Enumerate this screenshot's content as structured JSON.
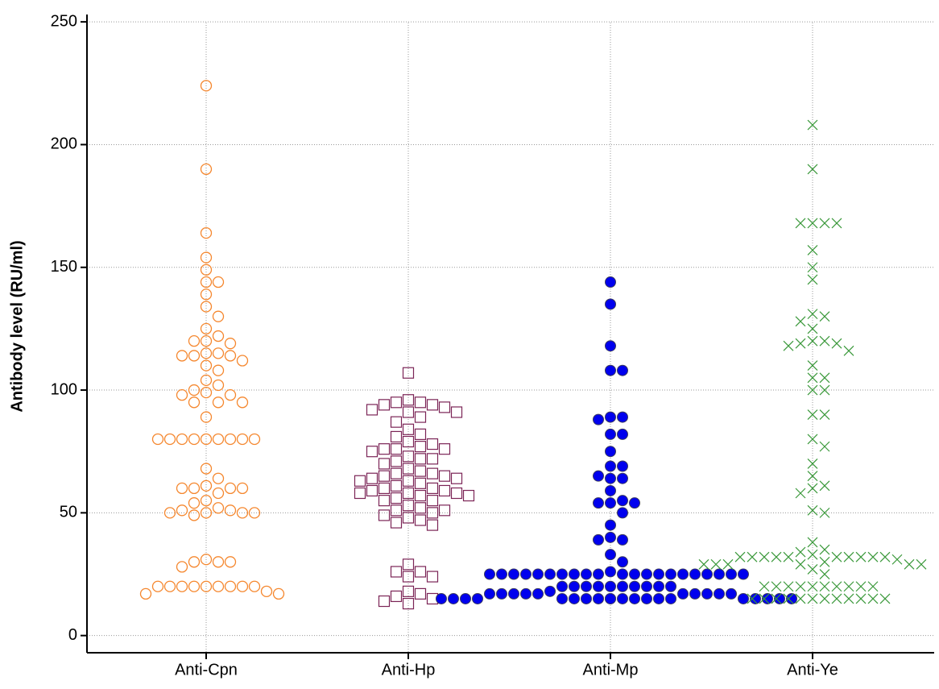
{
  "chart_data": {
    "type": "strip",
    "y_label": "Antibody level (RU/ml)",
    "categories": [
      "Anti-Cpn",
      "Anti-Hp",
      "Anti-Mp",
      "Anti-Ye"
    ],
    "ylim": [
      -7,
      253
    ],
    "yticks": [
      0,
      50,
      100,
      150,
      200,
      250
    ],
    "grid": true,
    "series": [
      {
        "color": "#f5872e",
        "marker": "open-circle",
        "values": [
          224,
          190,
          164,
          154,
          149,
          144,
          144,
          139,
          134,
          130,
          125,
          122,
          120,
          120,
          119,
          115,
          115,
          114,
          114,
          114,
          112,
          110,
          108,
          104,
          102,
          100,
          99,
          98,
          98,
          95,
          95,
          95,
          89,
          80,
          80,
          80,
          80,
          80,
          80,
          80,
          80,
          80,
          68,
          64,
          61,
          60,
          60,
          60,
          60,
          58,
          55,
          54,
          52,
          51,
          51,
          50,
          50,
          50,
          50,
          49,
          31,
          30,
          30,
          30,
          28,
          20,
          20,
          20,
          20,
          20,
          20,
          20,
          20,
          20,
          18,
          17,
          17
        ]
      },
      {
        "color": "#7b2456",
        "marker": "open-square",
        "values": [
          107,
          96,
          95,
          95,
          94,
          94,
          93,
          92,
          91,
          91,
          89,
          87,
          84,
          82,
          81,
          79,
          78,
          77,
          76,
          76,
          76,
          75,
          73,
          72,
          72,
          71,
          70,
          68,
          67,
          66,
          66,
          65,
          65,
          64,
          64,
          63,
          63,
          62,
          61,
          60,
          60,
          59,
          59,
          58,
          58,
          58,
          57,
          57,
          56,
          55,
          55,
          53,
          52,
          51,
          51,
          50,
          49,
          48,
          47,
          46,
          45,
          29,
          26,
          26,
          24,
          24,
          18,
          17,
          16,
          15,
          14,
          13
        ]
      },
      {
        "color": "#0000ee",
        "marker": "filled-circle",
        "values": [
          144,
          135,
          118,
          108,
          108,
          89,
          89,
          88,
          82,
          82,
          75,
          69,
          69,
          65,
          64,
          64,
          59,
          55,
          54,
          54,
          54,
          50,
          45,
          40,
          39,
          39,
          33,
          30,
          26,
          25,
          25,
          25,
          25,
          25,
          25,
          25,
          25,
          25,
          25,
          25,
          25,
          25,
          25,
          25,
          25,
          25,
          25,
          25,
          25,
          25,
          20,
          20,
          20,
          20,
          20,
          20,
          20,
          20,
          20,
          20,
          18,
          17,
          17,
          17,
          17,
          17,
          17,
          17,
          17,
          17,
          17,
          15,
          15,
          15,
          15,
          15,
          15,
          15,
          15,
          15,
          15,
          15,
          15,
          15,
          15,
          15,
          15,
          15,
          15,
          15,
          15
        ]
      },
      {
        "color": "#3a983a",
        "marker": "cross",
        "values": [
          208,
          190,
          168,
          168,
          168,
          168,
          157,
          150,
          145,
          131,
          130,
          128,
          125,
          120,
          120,
          119,
          119,
          118,
          116,
          110,
          105,
          105,
          100,
          100,
          90,
          90,
          80,
          77,
          70,
          65,
          61,
          60,
          58,
          51,
          50,
          38,
          35,
          34,
          33,
          32,
          32,
          32,
          32,
          32,
          32,
          32,
          32,
          32,
          32,
          31,
          30,
          29,
          29,
          29,
          29,
          29,
          29,
          27,
          25,
          20,
          20,
          20,
          20,
          20,
          20,
          20,
          20,
          20,
          20,
          15,
          15,
          15,
          15,
          15,
          15,
          15,
          15,
          15,
          15,
          15,
          15
        ]
      }
    ]
  }
}
